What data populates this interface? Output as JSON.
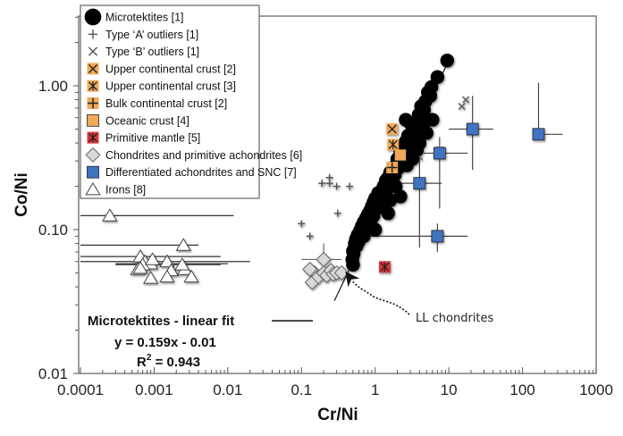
{
  "chart_data": {
    "type": "scatter",
    "title": "",
    "xlabel": "Cr/Ni",
    "ylabel": "Co/Ni",
    "xscale": "log",
    "yscale": "log",
    "xlim": [
      0.0001,
      1000
    ],
    "ylim": [
      0.01,
      3
    ],
    "grid": false,
    "x_ticks": [
      {
        "value": 0.0001,
        "label": "0.0001"
      },
      {
        "value": 0.001,
        "label": "0.001"
      },
      {
        "value": 0.01,
        "label": "0.01"
      },
      {
        "value": 0.1,
        "label": "0.1"
      },
      {
        "value": 1,
        "label": "1"
      },
      {
        "value": 10,
        "label": "10"
      },
      {
        "value": 100,
        "label": "100"
      },
      {
        "value": 1000,
        "label": "1000"
      }
    ],
    "y_ticks": [
      {
        "value": 0.01,
        "label": "0.01"
      },
      {
        "value": 0.1,
        "label": "0.10"
      },
      {
        "value": 1,
        "label": "1.00"
      }
    ],
    "legend_position": "top-left",
    "legend": [
      {
        "key": "microtektites",
        "label": "Microtektites [1]",
        "marker": "circle",
        "color": "#000000"
      },
      {
        "key": "typeA",
        "label": "Type ‘A’ outliers [1]",
        "marker": "plus",
        "color": "#000000"
      },
      {
        "key": "typeB",
        "label": "Type ‘B’ outliers [1]",
        "marker": "x",
        "color": "#000000"
      },
      {
        "key": "ucc2",
        "label": "Upper continental crust [2]",
        "marker": "x-square",
        "color": "#f0a95a"
      },
      {
        "key": "ucc3",
        "label": "Upper continental crust  [3]",
        "marker": "asterisk-square",
        "color": "#f0a95a"
      },
      {
        "key": "bcc",
        "label": "Bulk continental crust [2]",
        "marker": "plus-square",
        "color": "#f0a95a"
      },
      {
        "key": "oceanic",
        "label": "Oceanic crust [4]",
        "marker": "square",
        "color": "#f0a95a"
      },
      {
        "key": "mantle",
        "label": "Primitive mantle [5]",
        "marker": "asterisk-square",
        "color": "#d9363a"
      },
      {
        "key": "chondrites",
        "label": "Chondrites and primitive achondrites [6]",
        "marker": "diamond",
        "color": "#d8d8d8"
      },
      {
        "key": "diffach",
        "label": "Differentiated achondrites and SNC [7]",
        "marker": "square",
        "color": "#3f73c2"
      },
      {
        "key": "irons",
        "label": "Irons [8]",
        "marker": "triangle",
        "color": "#ffffff"
      }
    ],
    "series": [
      {
        "key": "microtektites",
        "name": "Microtektites [1]",
        "points": [
          [
            9.5,
            1.5
          ],
          [
            7.0,
            1.15
          ],
          [
            5.8,
            0.98
          ],
          [
            5.2,
            0.9
          ],
          [
            5.6,
            0.85
          ],
          [
            4.8,
            0.78
          ],
          [
            4.2,
            0.72
          ],
          [
            4.6,
            0.68
          ],
          [
            3.9,
            0.63
          ],
          [
            4.3,
            0.6
          ],
          [
            3.6,
            0.56
          ],
          [
            3.3,
            0.52
          ],
          [
            3.8,
            0.5
          ],
          [
            3.1,
            0.47
          ],
          [
            2.8,
            0.45
          ],
          [
            3.4,
            0.43
          ],
          [
            2.6,
            0.41
          ],
          [
            2.9,
            0.39
          ],
          [
            2.4,
            0.37
          ],
          [
            3.7,
            0.36
          ],
          [
            2.2,
            0.35
          ],
          [
            2.5,
            0.33
          ],
          [
            2.0,
            0.31
          ],
          [
            2.3,
            0.3
          ],
          [
            1.9,
            0.28
          ],
          [
            2.1,
            0.27
          ],
          [
            1.75,
            0.26
          ],
          [
            1.6,
            0.25
          ],
          [
            1.85,
            0.24
          ],
          [
            1.5,
            0.23
          ],
          [
            1.4,
            0.22
          ],
          [
            1.65,
            0.21
          ],
          [
            1.3,
            0.2
          ],
          [
            1.45,
            0.19
          ],
          [
            1.2,
            0.185
          ],
          [
            1.1,
            0.18
          ],
          [
            1.35,
            0.17
          ],
          [
            1.0,
            0.165
          ],
          [
            1.15,
            0.16
          ],
          [
            0.95,
            0.155
          ],
          [
            1.25,
            0.15
          ],
          [
            0.9,
            0.145
          ],
          [
            1.05,
            0.14
          ],
          [
            0.85,
            0.135
          ],
          [
            1.5,
            0.13
          ],
          [
            0.8,
            0.128
          ],
          [
            0.95,
            0.125
          ],
          [
            0.75,
            0.12
          ],
          [
            0.88,
            0.117
          ],
          [
            0.7,
            0.113
          ],
          [
            0.8,
            0.11
          ],
          [
            0.66,
            0.106
          ],
          [
            0.72,
            0.102
          ],
          [
            0.62,
            0.098
          ],
          [
            0.68,
            0.095
          ],
          [
            0.58,
            0.092
          ],
          [
            0.63,
            0.089
          ],
          [
            0.55,
            0.086
          ],
          [
            0.6,
            0.083
          ],
          [
            0.53,
            0.08
          ],
          [
            0.56,
            0.077
          ],
          [
            0.52,
            0.074
          ],
          [
            0.5,
            0.071
          ],
          [
            0.51,
            0.068
          ],
          [
            0.49,
            0.062
          ],
          [
            0.5,
            0.057
          ],
          [
            2.6,
            0.58
          ],
          [
            3.0,
            0.55
          ],
          [
            4.0,
            0.4
          ],
          [
            5.0,
            0.47
          ],
          [
            6.0,
            0.58
          ],
          [
            1.9,
            0.2
          ],
          [
            2.2,
            0.17
          ],
          [
            1.6,
            0.16
          ],
          [
            0.78,
            0.105
          ],
          [
            1.0,
            0.1
          ],
          [
            0.7,
            0.09
          ],
          [
            3.2,
            0.31
          ],
          [
            2.7,
            0.28
          ],
          [
            4.5,
            0.5
          ]
        ]
      },
      {
        "key": "typeA",
        "name": "Type ‘A’ outliers [1]",
        "points": [
          [
            0.1,
            0.11
          ],
          [
            0.13,
            0.09
          ],
          [
            0.19,
            0.21
          ],
          [
            0.24,
            0.23
          ],
          [
            0.24,
            0.21
          ],
          [
            0.3,
            0.2
          ],
          [
            0.31,
            0.13
          ],
          [
            0.45,
            0.2
          ],
          [
            5.0,
            0.7
          ]
        ]
      },
      {
        "key": "typeB",
        "name": "Type ‘B’ outliers [1]",
        "points": [
          [
            4.0,
            0.32
          ],
          [
            7.5,
            0.36
          ],
          [
            15.0,
            0.72
          ],
          [
            17.0,
            0.8
          ]
        ]
      },
      {
        "key": "ucc2",
        "name": "Upper continental crust [2]",
        "points": [
          [
            1.7,
            0.5
          ]
        ]
      },
      {
        "key": "ucc3",
        "name": "Upper continental crust  [3]",
        "points": [
          [
            1.75,
            0.39
          ]
        ]
      },
      {
        "key": "bcc",
        "name": "Bulk continental crust [2]",
        "points": [
          [
            1.7,
            0.27
          ]
        ]
      },
      {
        "key": "oceanic",
        "name": "Oceanic crust [4]",
        "points": [
          [
            2.2,
            0.33
          ]
        ]
      },
      {
        "key": "mantle",
        "name": "Primitive mantle [5]",
        "points": [
          [
            1.35,
            0.055
          ]
        ]
      },
      {
        "key": "chondrites",
        "name": "Chondrites and primitive achondrites [6]",
        "points": [
          [
            0.15,
            0.05
          ],
          [
            0.13,
            0.053
          ],
          [
            0.14,
            0.043
          ],
          [
            0.17,
            0.047
          ],
          [
            0.2,
            0.05
          ],
          [
            0.22,
            0.048
          ],
          [
            0.25,
            0.052
          ],
          [
            0.27,
            0.049
          ],
          [
            0.3,
            0.05
          ],
          [
            0.35,
            0.05
          ],
          [
            0.2,
            0.062
          ]
        ],
        "errors": [
          {
            "index": 10,
            "x": [
              0.1,
              0.35
            ],
            "y": [
              0.045,
              0.08
            ]
          }
        ]
      },
      {
        "key": "diffach",
        "name": "Differentiated achondrites and SNC [7]",
        "points": [
          [
            4.0,
            0.21
          ],
          [
            7.5,
            0.34
          ],
          [
            21.0,
            0.5
          ],
          [
            165.0,
            0.46
          ],
          [
            7.0,
            0.09
          ]
        ],
        "errors": [
          {
            "x": [
              1.5,
              8.0
            ],
            "y": [
              0.075,
              0.4
            ]
          },
          {
            "x": [
              4.5,
              18.0
            ],
            "y": [
              0.14,
              0.44
            ]
          },
          {
            "x": [
              10.0,
              40.0
            ],
            "y": [
              0.26,
              0.85
            ]
          },
          {
            "x": [
              160.0,
              350.0
            ],
            "y": [
              0.46,
              1.05
            ]
          },
          {
            "x": [
              0.75,
              18.0
            ],
            "y": [
              0.07,
              0.11
            ]
          }
        ]
      },
      {
        "key": "irons",
        "name": "Irons [8]",
        "points": [
          [
            0.00025,
            0.125
          ],
          [
            0.0025,
            0.078
          ],
          [
            0.00065,
            0.065
          ],
          [
            0.00075,
            0.06
          ],
          [
            0.0009,
            0.058
          ],
          [
            0.0007,
            0.057
          ],
          [
            0.0015,
            0.06
          ],
          [
            0.0006,
            0.053
          ],
          [
            0.00065,
            0.054
          ],
          [
            0.0017,
            0.052
          ],
          [
            0.0026,
            0.053
          ],
          [
            0.0032,
            0.047
          ],
          [
            0.0015,
            0.047
          ],
          [
            0.0009,
            0.046
          ],
          [
            0.00095,
            0.062
          ],
          [
            0.0024,
            0.057
          ]
        ],
        "errors": [
          {
            "x": [
              0.0001,
              0.012
            ],
            "y": [
              0.078,
              0.078
            ]
          },
          {
            "x": [
              0.0001,
              0.004
            ],
            "y": [
              0.063,
              0.063
            ]
          },
          {
            "x": [
              0.0001,
              0.008
            ],
            "y": [
              0.059,
              0.059
            ]
          },
          {
            "x": [
              0.0001,
              0.02
            ],
            "y": [
              0.055,
              0.055
            ]
          },
          {
            "x": [
              0.0003,
              0.01
            ],
            "y": [
              0.049,
              0.049
            ]
          },
          {
            "x": [
              0.0003,
              0.008
            ],
            "y": [
              0.046,
              0.046
            ]
          }
        ]
      }
    ],
    "fit": {
      "label": "Microtektites - linear fit",
      "equation": "y = 0.159x - 0.01",
      "r2_prefix": "R",
      "r2_sup": "2",
      "r2_value": " = 0.943",
      "slope": 0.159,
      "intercept": -0.01,
      "x_range": [
        0.28,
        10
      ]
    },
    "annotations": [
      {
        "text": "LL chondrites",
        "points_to": [
          0.38,
          0.04
        ]
      }
    ]
  }
}
